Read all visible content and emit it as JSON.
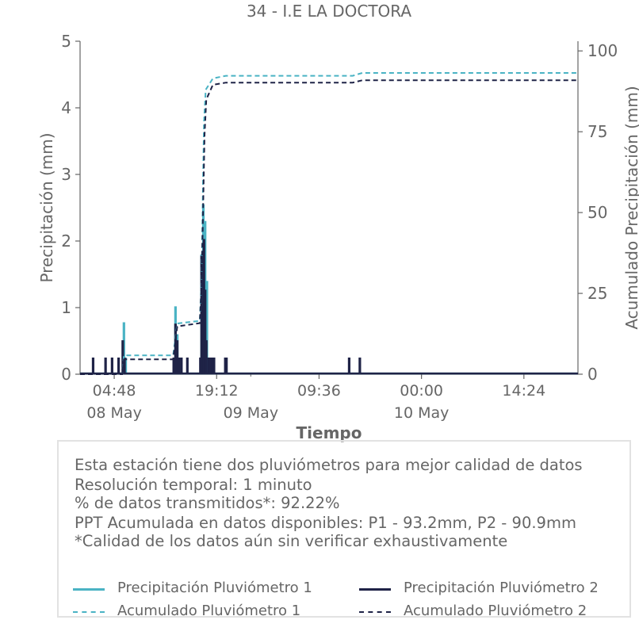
{
  "chart_data": {
    "type": "line",
    "title": "34 - I.E LA DOCTORA",
    "xlabel": "Tiempo",
    "ylabel_left": "Precipitación (mm)",
    "ylabel_right": "Acumulado Precipitación (mm)",
    "ylim_left": [
      0,
      5
    ],
    "ylim_right": [
      0,
      103
    ],
    "yticks_left": [
      0,
      1,
      2,
      3,
      4,
      5
    ],
    "yticks_right": [
      0,
      25,
      50,
      75,
      100
    ],
    "xlim": [
      "2024-05-08 00:00",
      "2024-05-10 22:00"
    ],
    "xticks": [
      {
        "t": "2024-05-08 04:48",
        "label": "04:48",
        "sublabel": "08 May"
      },
      {
        "t": "2024-05-08 19:12",
        "label": "19:12",
        "sublabel": ""
      },
      {
        "t": "2024-05-09 09:36",
        "label": "09:36",
        "sublabel": ""
      },
      {
        "t": "2024-05-10 00:00",
        "label": "00:00",
        "sublabel": ""
      },
      {
        "t": "2024-05-10 14:24",
        "label": "14:24",
        "sublabel": ""
      }
    ],
    "minor_xticks": [
      {
        "t": "2024-05-09 00:00",
        "label": "09 May"
      },
      {
        "t": "2024-05-10 00:00",
        "label": "10 May"
      }
    ],
    "grid": false,
    "series": [
      {
        "name": "Precipitación Pluviómetro 1",
        "axis": "left",
        "style": "solid",
        "color": "#4ab3c4",
        "spikes": [
          [
            "2024-05-08 06:10",
            0.78
          ],
          [
            "2024-05-08 06:25",
            0.25
          ],
          [
            "2024-05-08 13:25",
            1.02
          ],
          [
            "2024-05-08 13:40",
            0.6
          ],
          [
            "2024-05-08 17:05",
            1.8
          ],
          [
            "2024-05-08 17:20",
            2.55
          ],
          [
            "2024-05-08 17:35",
            2.3
          ],
          [
            "2024-05-08 17:50",
            1.4
          ]
        ]
      },
      {
        "name": "Precipitación Pluviómetro 2",
        "axis": "left",
        "style": "solid",
        "color": "#1f2347",
        "spikes": [
          [
            "2024-05-08 01:50",
            0.25
          ],
          [
            "2024-05-08 03:35",
            0.25
          ],
          [
            "2024-05-08 04:30",
            0.25
          ],
          [
            "2024-05-08 05:25",
            0.25
          ],
          [
            "2024-05-08 06:00",
            0.51
          ],
          [
            "2024-05-08 06:15",
            0.25
          ],
          [
            "2024-05-08 13:10",
            0.25
          ],
          [
            "2024-05-08 13:25",
            0.76
          ],
          [
            "2024-05-08 13:40",
            0.51
          ],
          [
            "2024-05-08 13:55",
            0.25
          ],
          [
            "2024-05-08 14:15",
            0.25
          ],
          [
            "2024-05-08 15:05",
            0.25
          ],
          [
            "2024-05-08 16:55",
            0.25
          ],
          [
            "2024-05-08 17:05",
            1.78
          ],
          [
            "2024-05-08 17:15",
            1.02
          ],
          [
            "2024-05-08 17:25",
            2.03
          ],
          [
            "2024-05-08 17:35",
            1.27
          ],
          [
            "2024-05-08 17:45",
            0.51
          ],
          [
            "2024-05-08 18:05",
            0.25
          ],
          [
            "2024-05-08 18:20",
            0.25
          ],
          [
            "2024-05-08 18:35",
            0.25
          ],
          [
            "2024-05-08 18:50",
            0.25
          ],
          [
            "2024-05-08 20:25",
            0.25
          ],
          [
            "2024-05-08 20:35",
            0.25
          ],
          [
            "2024-05-09 13:50",
            0.25
          ],
          [
            "2024-05-09 15:20",
            0.25
          ]
        ]
      },
      {
        "name": "Acumulado Pluviómetro 1",
        "axis": "right",
        "style": "dashed",
        "color": "#4ab3c4",
        "points": [
          [
            "2024-05-08 00:00",
            0
          ],
          [
            "2024-05-08 05:55",
            0
          ],
          [
            "2024-05-08 06:10",
            5.8
          ],
          [
            "2024-05-08 13:05",
            5.8
          ],
          [
            "2024-05-08 13:40",
            15.7
          ],
          [
            "2024-05-08 16:50",
            16.5
          ],
          [
            "2024-05-08 17:05",
            30
          ],
          [
            "2024-05-08 17:15",
            55
          ],
          [
            "2024-05-08 17:25",
            78
          ],
          [
            "2024-05-08 17:40",
            88
          ],
          [
            "2024-05-08 18:40",
            91.5
          ],
          [
            "2024-05-08 20:30",
            92.3
          ],
          [
            "2024-05-09 14:20",
            92.3
          ],
          [
            "2024-05-09 15:40",
            93.2
          ],
          [
            "2024-05-10 22:00",
            93.2
          ]
        ]
      },
      {
        "name": "Acumulado Pluviómetro 2",
        "axis": "right",
        "style": "dashed",
        "color": "#1f2347",
        "points": [
          [
            "2024-05-08 00:00",
            0
          ],
          [
            "2024-05-08 05:55",
            0
          ],
          [
            "2024-05-08 06:10",
            4.6
          ],
          [
            "2024-05-08 13:05",
            4.6
          ],
          [
            "2024-05-08 13:40",
            14.8
          ],
          [
            "2024-05-08 16:50",
            15.8
          ],
          [
            "2024-05-08 17:05",
            28
          ],
          [
            "2024-05-08 17:20",
            55
          ],
          [
            "2024-05-08 17:30",
            74
          ],
          [
            "2024-05-08 17:45",
            85
          ],
          [
            "2024-05-08 18:40",
            89.5
          ],
          [
            "2024-05-08 20:30",
            90.2
          ],
          [
            "2024-05-09 14:20",
            90.2
          ],
          [
            "2024-05-09 15:40",
            90.9
          ],
          [
            "2024-05-10 22:00",
            90.9
          ]
        ]
      }
    ]
  },
  "info": {
    "line1": "Esta estación tiene dos pluviómetros para mejor calidad de datos",
    "line2": "Resolución temporal: 1 minuto",
    "line3": "% de datos transmitidos*: 92.22%",
    "line4": "PPT Acumulada en datos disponibles: P1 - 93.2mm, P2 - 90.9mm",
    "line5": "*Calidad de los datos aún sin verificar exhaustivamente"
  },
  "legend": {
    "p1": "Precipitación Pluviómetro 1",
    "p2": "Precipitación Pluviómetro 2",
    "a1": "Acumulado Pluviómetro 1",
    "a2": "Acumulado Pluviómetro 2"
  },
  "colors": {
    "p1": "#4ab3c4",
    "p2": "#1f2347",
    "text": "#666666"
  }
}
